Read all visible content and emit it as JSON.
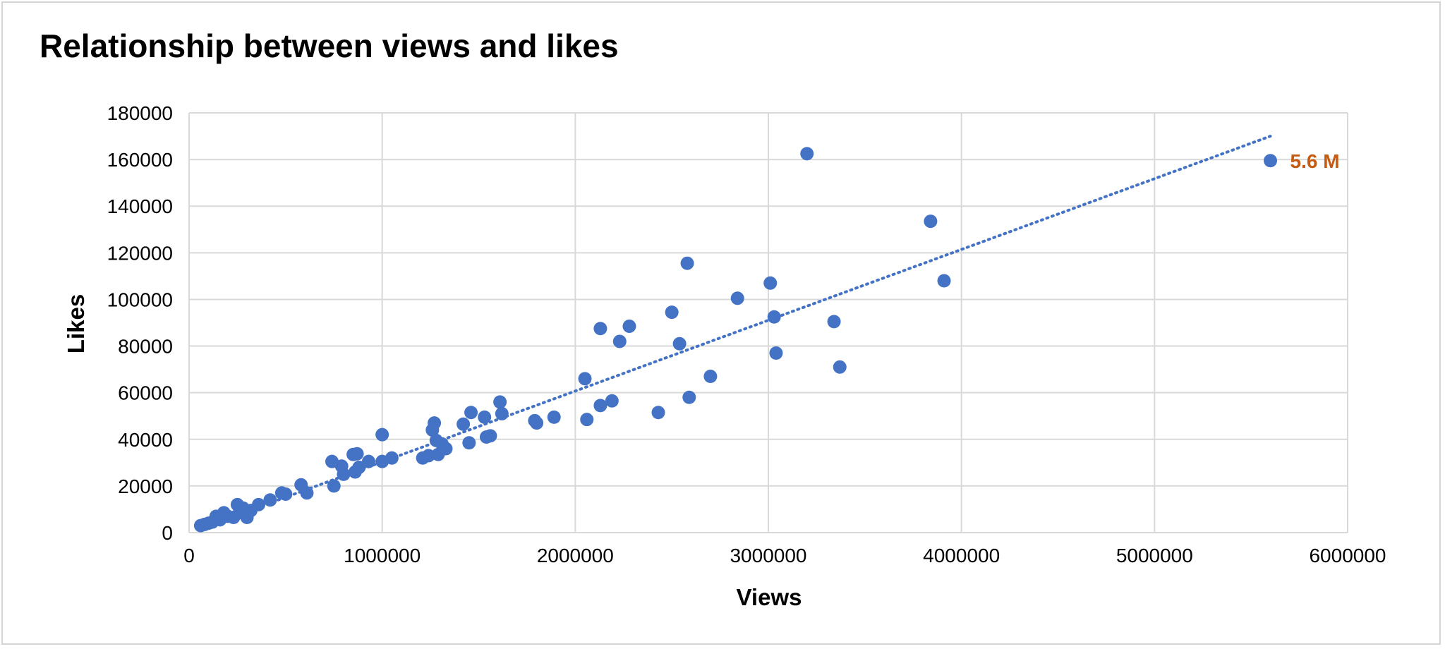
{
  "chart_data": {
    "type": "scatter",
    "title": "Relationship between views and likes",
    "xlabel": "Views",
    "ylabel": "Likes",
    "xlim": [
      0,
      6000000
    ],
    "ylim": [
      0,
      180000
    ],
    "xticks": [
      0,
      1000000,
      2000000,
      3000000,
      4000000,
      5000000,
      6000000
    ],
    "yticks": [
      0,
      20000,
      40000,
      60000,
      80000,
      100000,
      120000,
      140000,
      160000,
      180000
    ],
    "grid": true,
    "legend": "none",
    "colors": {
      "point": "#4472c4",
      "trendline": "#4472c4",
      "annotation": "#c55a11",
      "grid": "#d9d9d9"
    },
    "trendline": {
      "style": "dotted",
      "x": [
        50000,
        5600000
      ],
      "y": [
        1500,
        170000
      ]
    },
    "annotation": {
      "text": "5.6 M",
      "x": 5600000,
      "y": 159500
    },
    "series": [
      {
        "x": [
          60000,
          80000,
          100000,
          120000,
          140000,
          160000,
          180000,
          200000,
          230000,
          250000,
          260000,
          280000,
          300000,
          320000,
          360000,
          420000,
          480000,
          500000,
          580000,
          610000,
          740000,
          750000,
          790000,
          800000,
          850000,
          860000,
          870000,
          880000,
          930000,
          1000000,
          1000000,
          1050000,
          1210000,
          1240000,
          1260000,
          1270000,
          1280000,
          1290000,
          1310000,
          1330000,
          1420000,
          1450000,
          1460000,
          1530000,
          1540000,
          1560000,
          1610000,
          1620000,
          1790000,
          1800000,
          1890000,
          2050000,
          2060000,
          2130000,
          2130000,
          2190000,
          2230000,
          2280000,
          2430000,
          2500000,
          2540000,
          2580000,
          2590000,
          2700000,
          2840000,
          3010000,
          3030000,
          3040000,
          3200000,
          3340000,
          3370000,
          3840000,
          3910000,
          5600000
        ],
        "y": [
          3000,
          3500,
          4000,
          4500,
          7000,
          5500,
          8500,
          7000,
          6500,
          12000,
          8500,
          10500,
          6500,
          9500,
          12000,
          14000,
          17000,
          16500,
          20500,
          17000,
          30500,
          20000,
          28500,
          25000,
          33500,
          26000,
          33800,
          28000,
          30500,
          42000,
          30500,
          32000,
          32000,
          33000,
          44000,
          47000,
          39500,
          33500,
          38000,
          36000,
          46500,
          38500,
          51500,
          49500,
          41000,
          41500,
          56000,
          51000,
          48000,
          47000,
          49500,
          66000,
          48500,
          87500,
          54500,
          56500,
          82000,
          88500,
          51500,
          94500,
          81000,
          115500,
          58000,
          67000,
          100500,
          107000,
          92500,
          77000,
          162500,
          90500,
          71000,
          133500,
          108000,
          159500
        ]
      }
    ]
  }
}
